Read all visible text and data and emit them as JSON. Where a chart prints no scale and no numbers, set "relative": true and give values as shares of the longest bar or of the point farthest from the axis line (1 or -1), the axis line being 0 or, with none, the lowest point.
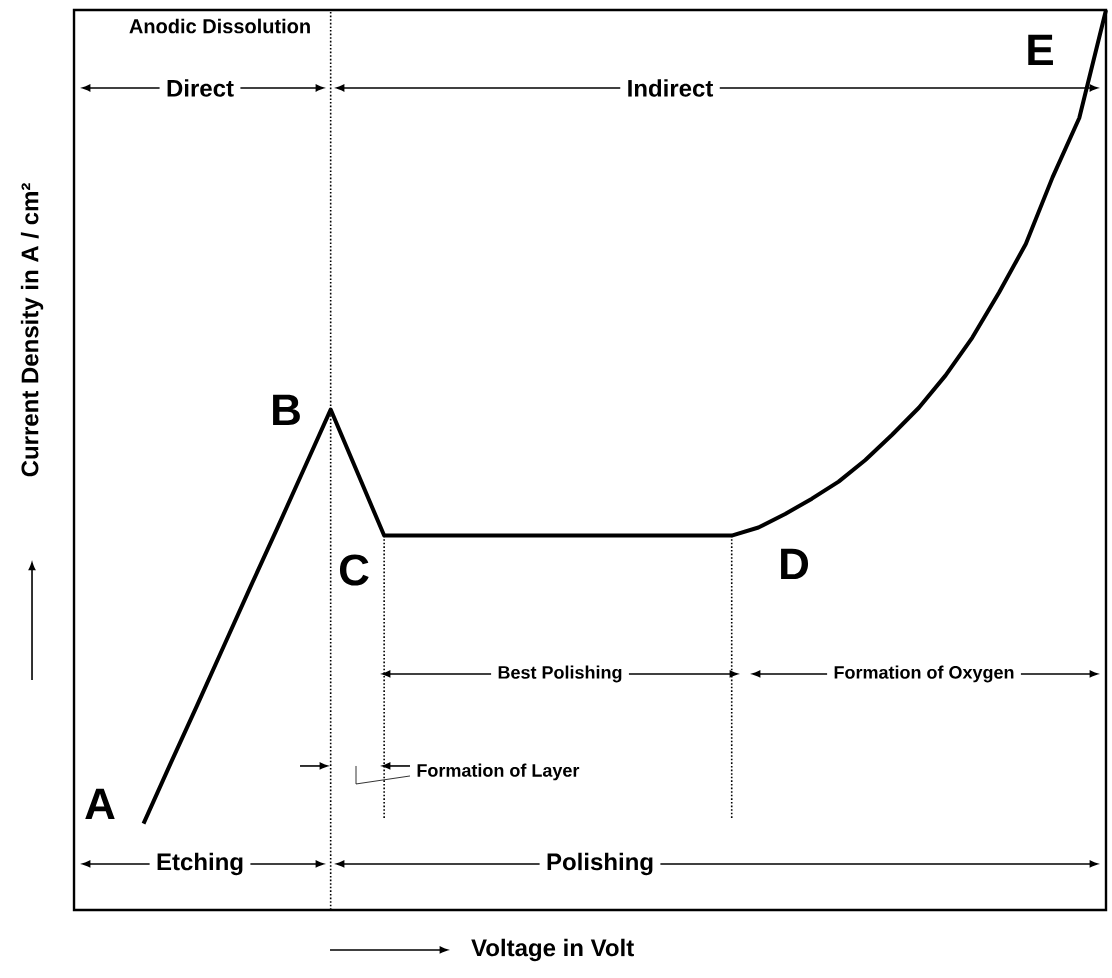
{
  "chart_data": {
    "type": "line",
    "relative": true,
    "color": "#000000",
    "xlabel": "Voltage in Volt",
    "ylabel": "Current Density in A / cm²",
    "categories": [
      null,
      null,
      null,
      null,
      null,
      null,
      null,
      null,
      null,
      null,
      null,
      null,
      null,
      null,
      null,
      null,
      null,
      null,
      null,
      null,
      null,
      null,
      null,
      null,
      null,
      null,
      null,
      null,
      null,
      null,
      null,
      null,
      null,
      null,
      null,
      null,
      null
    ],
    "values": [
      0.096,
      0.162,
      0.227,
      0.293,
      0.359,
      0.424,
      0.49,
      0.556,
      0.486,
      0.416,
      0.416,
      0.416,
      0.416,
      0.416,
      0.416,
      0.416,
      0.416,
      0.416,
      0.416,
      0.416,
      0.416,
      0.416,
      0.416,
      0.425,
      0.44,
      0.457,
      0.476,
      0.5,
      0.528,
      0.558,
      0.594,
      0.636,
      0.686,
      0.74,
      0.814,
      0.88,
      1.0
    ],
    "annotations": [
      "A",
      "B",
      "C",
      "D",
      "E",
      "Anodic Dissolution",
      "Direct",
      "Indirect",
      "Best Polishing",
      "Formation of Oxygen",
      "Formation of Layer",
      "Etching",
      "Polishing"
    ]
  }
}
